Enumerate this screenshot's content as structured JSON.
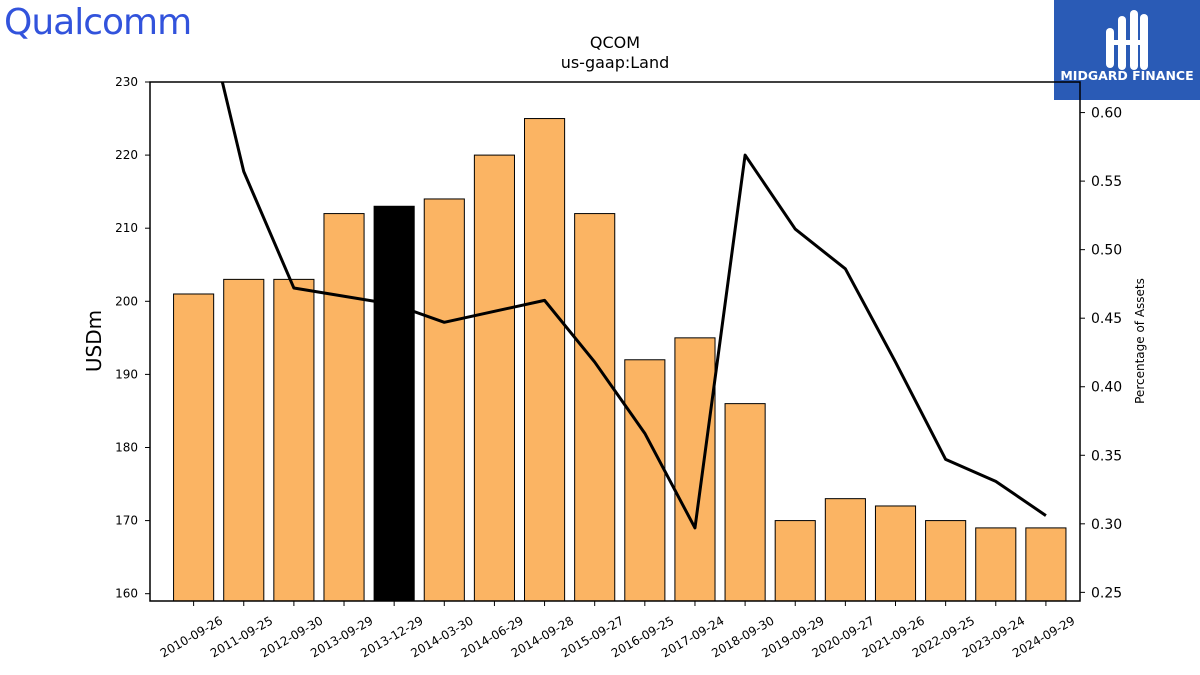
{
  "logos": {
    "company": "Qualcomm",
    "publisher": "MIDGARD FINANCE"
  },
  "colors": {
    "bar": "#fbb463",
    "bar_highlight": "#000000",
    "line": "#000000",
    "qualcomm_brand": "#3253dc",
    "midgard_bg": "#2a5bb6"
  },
  "chart_data": {
    "type": "bar",
    "title": "QCOM",
    "subtitle": "us-gaap:Land",
    "ylabel": "USDm",
    "y2label": "Percentage of Assets",
    "ylim": [
      159,
      230
    ],
    "y2lim": [
      0.2437,
      0.6223
    ],
    "yticks": [
      160,
      170,
      180,
      190,
      200,
      210,
      220,
      230
    ],
    "y2ticks": [
      "0.25",
      "0.30",
      "0.35",
      "0.40",
      "0.45",
      "0.50",
      "0.55",
      "0.60"
    ],
    "highlight_category": "2013-12-29",
    "categories": [
      "2010-09-26",
      "2011-09-25",
      "2012-09-30",
      "2013-09-29",
      "2013-12-29",
      "2014-03-30",
      "2014-06-29",
      "2014-09-28",
      "2015-09-27",
      "2016-09-25",
      "2017-09-24",
      "2018-09-30",
      "2019-09-29",
      "2020-09-27",
      "2021-09-26",
      "2022-09-25",
      "2023-09-24",
      "2024-09-29"
    ],
    "series": [
      {
        "type": "bar",
        "axis": "left",
        "values": [
          201,
          203,
          203,
          212,
          213,
          214,
          220,
          225,
          212,
          192,
          195,
          186,
          170,
          173,
          172,
          170,
          169,
          169
        ]
      },
      {
        "type": "line",
        "axis": "right",
        "values": [
          0.71,
          0.557,
          0.472,
          0.466,
          0.46,
          0.447,
          0.455,
          0.463,
          0.418,
          0.366,
          0.297,
          0.569,
          0.515,
          0.486,
          0.418,
          0.347,
          0.331,
          0.306
        ]
      }
    ]
  }
}
